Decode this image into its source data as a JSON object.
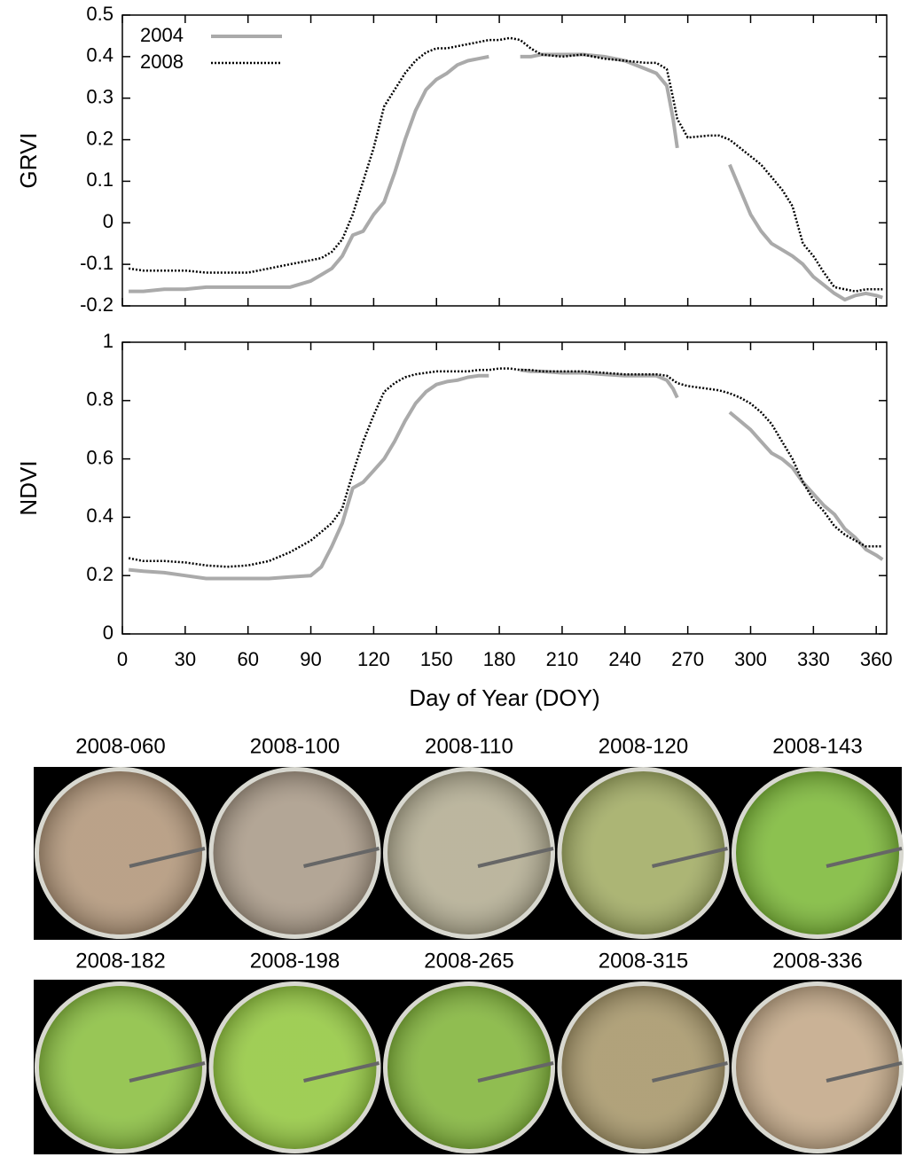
{
  "chart_data": [
    {
      "type": "line",
      "ylabel": "GRVI",
      "legend": "upper left",
      "grid": false,
      "show_xtick_labels": false,
      "x": [
        3,
        10,
        20,
        30,
        40,
        50,
        60,
        70,
        80,
        90,
        95,
        100,
        105,
        110,
        115,
        120,
        125,
        130,
        135,
        140,
        145,
        150,
        155,
        160,
        165,
        170,
        175,
        180,
        185,
        190,
        195,
        200,
        210,
        220,
        230,
        240,
        250,
        255,
        260,
        263,
        265,
        270,
        280,
        285,
        290,
        295,
        300,
        305,
        310,
        315,
        320,
        325,
        330,
        335,
        340,
        345,
        350,
        355,
        360,
        363
      ],
      "xlim": [
        0,
        365
      ],
      "xticks": [
        0,
        30,
        60,
        90,
        120,
        150,
        180,
        210,
        240,
        270,
        300,
        330,
        360
      ],
      "ylim": [
        -0.2,
        0.5
      ],
      "yticks": [
        -0.2,
        -0.1,
        0,
        0.1,
        0.2,
        0.3,
        0.4,
        0.5
      ],
      "series": [
        {
          "name": "2004",
          "color": "#aaaaaa",
          "style": "solid",
          "values": [
            -0.165,
            -0.165,
            -0.16,
            -0.16,
            -0.155,
            -0.155,
            -0.155,
            -0.155,
            -0.155,
            -0.14,
            -0.125,
            -0.11,
            -0.08,
            -0.03,
            -0.02,
            0.02,
            0.05,
            0.12,
            0.2,
            0.27,
            0.32,
            0.345,
            0.36,
            0.38,
            0.39,
            0.395,
            0.4,
            null,
            null,
            0.4,
            0.4,
            0.405,
            0.405,
            0.405,
            0.4,
            0.39,
            0.37,
            0.36,
            0.33,
            0.25,
            0.18,
            null,
            null,
            null,
            0.14,
            0.08,
            0.02,
            -0.02,
            -0.05,
            -0.065,
            -0.08,
            -0.1,
            -0.13,
            -0.15,
            -0.17,
            -0.185,
            -0.175,
            -0.17,
            -0.175,
            -0.18
          ]
        },
        {
          "name": "2008",
          "color": "#000000",
          "style": "dotted",
          "values": [
            -0.11,
            -0.115,
            -0.115,
            -0.115,
            -0.12,
            -0.12,
            -0.12,
            -0.11,
            -0.1,
            -0.09,
            -0.085,
            -0.07,
            -0.04,
            0.02,
            0.1,
            0.18,
            0.28,
            0.32,
            0.36,
            0.39,
            0.41,
            0.42,
            0.42,
            0.425,
            0.43,
            0.435,
            0.44,
            0.44,
            0.445,
            0.44,
            0.42,
            0.405,
            0.4,
            0.405,
            0.395,
            0.39,
            0.385,
            0.385,
            0.37,
            0.3,
            0.25,
            0.205,
            0.21,
            0.21,
            0.2,
            0.18,
            0.16,
            0.14,
            0.11,
            0.08,
            0.04,
            -0.05,
            -0.08,
            -0.12,
            -0.155,
            -0.16,
            -0.165,
            -0.16,
            -0.16,
            -0.16
          ]
        }
      ]
    },
    {
      "type": "line",
      "ylabel": "NDVI",
      "xlabel": "Day of Year (DOY)",
      "grid": false,
      "show_xtick_labels": true,
      "x": [
        3,
        10,
        20,
        30,
        40,
        50,
        60,
        70,
        80,
        90,
        95,
        100,
        105,
        110,
        115,
        120,
        125,
        130,
        135,
        140,
        145,
        150,
        155,
        160,
        165,
        170,
        175,
        180,
        185,
        190,
        195,
        200,
        210,
        220,
        230,
        240,
        250,
        255,
        260,
        263,
        265,
        270,
        280,
        285,
        290,
        295,
        300,
        305,
        310,
        315,
        320,
        325,
        330,
        335,
        340,
        345,
        350,
        355,
        360,
        363
      ],
      "xlim": [
        0,
        365
      ],
      "xticks": [
        0,
        30,
        60,
        90,
        120,
        150,
        180,
        210,
        240,
        270,
        300,
        330,
        360
      ],
      "ylim": [
        0,
        1
      ],
      "yticks": [
        0,
        0.2,
        0.4,
        0.6,
        0.8,
        1
      ],
      "series": [
        {
          "name": "2004",
          "color": "#aaaaaa",
          "style": "solid",
          "values": [
            0.22,
            0.215,
            0.21,
            0.2,
            0.19,
            0.19,
            0.19,
            0.19,
            0.195,
            0.2,
            0.23,
            0.3,
            0.38,
            0.5,
            0.52,
            0.56,
            0.6,
            0.66,
            0.73,
            0.79,
            0.83,
            0.855,
            0.865,
            0.87,
            0.88,
            0.885,
            0.885,
            null,
            null,
            0.905,
            0.9,
            0.9,
            0.895,
            0.895,
            0.89,
            0.885,
            0.885,
            0.885,
            0.87,
            0.84,
            0.81,
            null,
            null,
            null,
            0.76,
            0.73,
            0.7,
            0.66,
            0.62,
            0.6,
            0.57,
            0.52,
            0.48,
            0.44,
            0.41,
            0.36,
            0.33,
            0.29,
            0.27,
            0.255
          ]
        },
        {
          "name": "2008",
          "color": "#000000",
          "style": "dotted",
          "values": [
            0.26,
            0.25,
            0.25,
            0.245,
            0.235,
            0.23,
            0.235,
            0.25,
            0.28,
            0.32,
            0.35,
            0.38,
            0.43,
            0.55,
            0.66,
            0.75,
            0.83,
            0.86,
            0.88,
            0.89,
            0.895,
            0.9,
            0.9,
            0.9,
            0.9,
            0.905,
            0.905,
            0.91,
            0.91,
            0.905,
            0.905,
            0.9,
            0.9,
            0.9,
            0.895,
            0.89,
            0.89,
            0.89,
            0.885,
            0.87,
            0.86,
            0.85,
            0.84,
            0.835,
            0.825,
            0.81,
            0.79,
            0.76,
            0.72,
            0.66,
            0.6,
            0.52,
            0.46,
            0.42,
            0.37,
            0.34,
            0.32,
            0.3,
            0.3,
            0.3
          ]
        }
      ]
    }
  ],
  "photos": [
    "2008-060",
    "2008-100",
    "2008-110",
    "2008-120",
    "2008-143",
    "2008-182",
    "2008-198",
    "2008-265",
    "2008-315",
    "2008-336"
  ]
}
